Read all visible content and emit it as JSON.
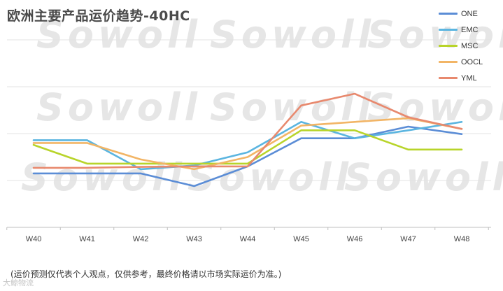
{
  "header": {
    "title": "欧洲主要产品运价趋势-40HC"
  },
  "watermark": {
    "text": "Sowoll"
  },
  "footnote": "(运价预测仅代表个人观点，仅供参考，最终价格请以市场实际运价为准。)",
  "corner_mark": "大鲸物流",
  "colors": {
    "ONE": "#5b8dd6",
    "EMC": "#5bb5e0",
    "MSC": "#b8d42a",
    "OOCL": "#f2b566",
    "YML": "#e8896e",
    "grid": "#e3e3e3",
    "axis": "#bfbfbf"
  },
  "chart_data": {
    "type": "line",
    "title": "欧洲主要产品运价趋势-40HC",
    "categories": [
      "W40",
      "W41",
      "W42",
      "W43",
      "W44",
      "W45",
      "W46",
      "W47",
      "W48"
    ],
    "ylim": [
      0,
      4
    ],
    "grid": true,
    "legend_position": "top-right",
    "series": [
      {
        "name": "ONE",
        "values": [
          1.15,
          1.15,
          1.15,
          0.88,
          1.3,
          1.9,
          1.9,
          2.15,
          1.99
        ]
      },
      {
        "name": "EMC",
        "values": [
          1.86,
          1.86,
          1.24,
          1.32,
          1.6,
          2.25,
          1.9,
          2.07,
          2.25
        ]
      },
      {
        "name": "MSC",
        "values": [
          1.76,
          1.36,
          1.36,
          1.36,
          1.36,
          2.07,
          2.07,
          1.66,
          1.66
        ]
      },
      {
        "name": "OOCL",
        "values": [
          1.8,
          1.8,
          1.45,
          1.24,
          1.5,
          2.17,
          2.25,
          2.33,
          2.1
        ]
      },
      {
        "name": "YML",
        "values": [
          1.27,
          1.27,
          1.29,
          1.3,
          1.3,
          2.6,
          2.85,
          2.35,
          2.1
        ]
      }
    ]
  }
}
